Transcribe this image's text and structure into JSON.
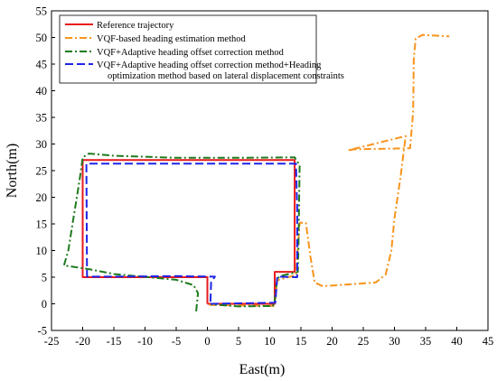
{
  "chart_data": {
    "type": "line",
    "xlabel": "East(m)",
    "ylabel": "North(m)",
    "xlim": [
      -25,
      45
    ],
    "ylim": [
      -5,
      55
    ],
    "xticks": [
      -25,
      -20,
      -15,
      -10,
      -5,
      0,
      5,
      10,
      15,
      20,
      25,
      30,
      35,
      40,
      45
    ],
    "yticks": [
      -5,
      0,
      5,
      10,
      15,
      20,
      25,
      30,
      35,
      40,
      45,
      50,
      55
    ],
    "grid": false,
    "legend_position": "top-left",
    "series": [
      {
        "name": "Reference trajectory",
        "color": "#e8191c",
        "dash": "solid",
        "points": [
          [
            0,
            0
          ],
          [
            10.8,
            0
          ],
          [
            10.8,
            6
          ],
          [
            14,
            6
          ],
          [
            14,
            27
          ],
          [
            -20,
            27
          ],
          [
            -20,
            5
          ],
          [
            0,
            5
          ],
          [
            0,
            0
          ]
        ]
      },
      {
        "name": "VQF-based heading estimation method",
        "color": "#f7941d",
        "dash": "dashdot",
        "points": [
          [
            0.3,
            -0.2
          ],
          [
            10.8,
            -0.4
          ],
          [
            11.2,
            4.4
          ],
          [
            14.2,
            5.4
          ],
          [
            14.8,
            15.2
          ],
          [
            15.8,
            15.2
          ],
          [
            16.5,
            9
          ],
          [
            17.2,
            4
          ],
          [
            18.5,
            3.3
          ],
          [
            27,
            4
          ],
          [
            28.6,
            5.5
          ],
          [
            29.5,
            10
          ],
          [
            30,
            16
          ],
          [
            31,
            24
          ],
          [
            31.8,
            31.5
          ],
          [
            22.5,
            28.8
          ],
          [
            23.5,
            29
          ],
          [
            32.5,
            29.2
          ],
          [
            33,
            36
          ],
          [
            33.1,
            46
          ],
          [
            33.4,
            49.8
          ],
          [
            34.5,
            50.5
          ],
          [
            38.8,
            50.2
          ]
        ]
      },
      {
        "name": "VQF+Adaptive heading offset correction method",
        "color": "#1e7b1e",
        "dash": "dashdot",
        "points": [
          [
            -1.8,
            -1.4
          ],
          [
            -1.5,
            2
          ],
          [
            -2.2,
            3.5
          ],
          [
            -5,
            4.5
          ],
          [
            -15,
            5.6
          ],
          [
            -19,
            6.5
          ],
          [
            -23,
            7.2
          ],
          [
            -22.3,
            10
          ],
          [
            -21.5,
            16
          ],
          [
            -20.8,
            21
          ],
          [
            -20.4,
            24
          ],
          [
            -20,
            27.5
          ],
          [
            -19,
            28.2
          ],
          [
            -15,
            27.8
          ],
          [
            -5,
            27.4
          ],
          [
            5,
            27.4
          ],
          [
            14,
            27.5
          ],
          [
            14.8,
            26
          ],
          [
            14.7,
            18
          ],
          [
            14.6,
            10
          ],
          [
            14.5,
            6
          ],
          [
            12,
            5.3
          ],
          [
            11.2,
            4.8
          ],
          [
            10.8,
            0.5
          ],
          [
            10.5,
            -0.4
          ],
          [
            5,
            -0.5
          ],
          [
            0.6,
            -0.1
          ]
        ]
      },
      {
        "name": "VQF+Adaptive heading offset correction method+Heading optimization method based on lateral displacement constraints",
        "color": "#1f24e6",
        "dash": "dashed",
        "points": [
          [
            0.5,
            0.4
          ],
          [
            0.6,
            4
          ],
          [
            1.2,
            5.1
          ],
          [
            -5,
            5.2
          ],
          [
            -15,
            5.1
          ],
          [
            -19.3,
            5.1
          ],
          [
            -19.4,
            26.3
          ],
          [
            14.2,
            26.3
          ],
          [
            14.4,
            18
          ],
          [
            14.4,
            5
          ],
          [
            11.2,
            5.1
          ],
          [
            10.9,
            0.2
          ],
          [
            0.5,
            0
          ]
        ]
      }
    ]
  }
}
